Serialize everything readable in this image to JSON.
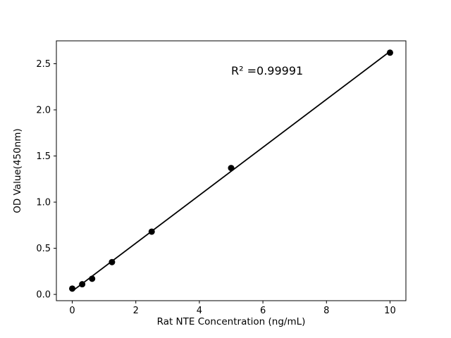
{
  "chart_data": {
    "type": "scatter",
    "xlabel": "Rat NTE Concentration (ng/mL)",
    "ylabel": "OD Value(450nm)",
    "x": [
      0,
      0.3125,
      0.625,
      1.25,
      2.5,
      5,
      10
    ],
    "y": [
      0.063,
      0.11,
      0.17,
      0.35,
      0.68,
      1.37,
      2.62
    ],
    "fit_line": true,
    "annotation": {
      "text": "R² =0.99991",
      "x": 5.0,
      "y": 2.38
    },
    "xlim": [
      -0.5,
      10.5
    ],
    "ylim": [
      -0.068,
      2.748
    ],
    "xticks": {
      "values": [
        0,
        2,
        4,
        6,
        8,
        10
      ],
      "labels": [
        "0",
        "2",
        "4",
        "6",
        "8",
        "10"
      ]
    },
    "yticks": {
      "values": [
        0.0,
        0.5,
        1.0,
        1.5,
        2.0,
        2.5
      ],
      "labels": [
        "0.0",
        "0.5",
        "1.0",
        "1.5",
        "2.0",
        "2.5"
      ]
    },
    "grid": false,
    "legend": false,
    "colors": {
      "marker": "#000000",
      "line": "#000000",
      "axes": "#000000",
      "text": "#000000",
      "background": "#ffffff"
    }
  }
}
